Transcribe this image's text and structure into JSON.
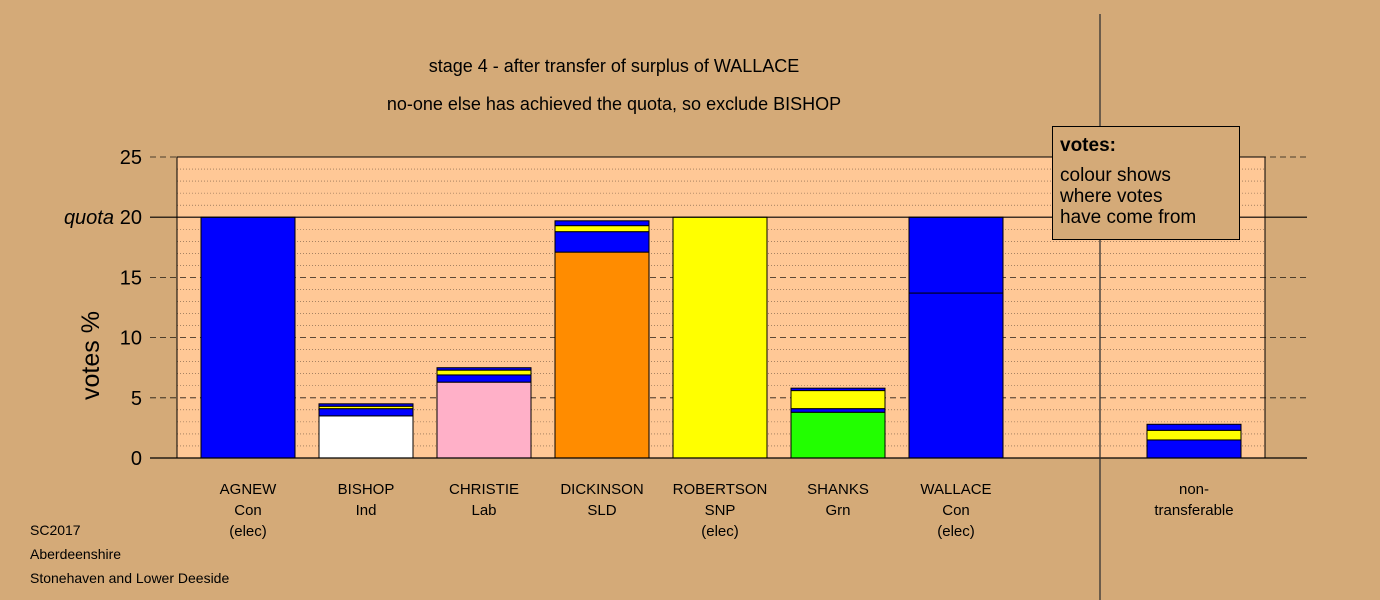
{
  "chart_data": {
    "type": "bar",
    "stacked": true,
    "title": "stage 4 - after transfer of surplus of WALLACE",
    "subtitle": "no-one else has achieved the quota, so exclude BISHOP",
    "ylabel": "votes %",
    "ylim": [
      0,
      25
    ],
    "yticks": [
      "0",
      "5",
      "10",
      "15",
      "20",
      "25"
    ],
    "quota": 20,
    "quota_label": "quota",
    "grid": true,
    "categories": [
      {
        "name": "AGNEW",
        "party": "Con",
        "status": "(elec)"
      },
      {
        "name": "BISHOP",
        "party": "Ind",
        "status": ""
      },
      {
        "name": "CHRISTIE",
        "party": "Lab",
        "status": ""
      },
      {
        "name": "DICKINSON",
        "party": "SLD",
        "status": ""
      },
      {
        "name": "ROBERTSON",
        "party": "SNP",
        "status": "(elec)"
      },
      {
        "name": "SHANKS",
        "party": "Grn",
        "status": ""
      },
      {
        "name": "WALLACE",
        "party": "Con",
        "status": "(elec)"
      },
      {
        "name": "non-",
        "party": "transferable",
        "status": ""
      }
    ],
    "bars": [
      {
        "segments": [
          {
            "value": 20.0,
            "color": "#0000ff"
          }
        ]
      },
      {
        "segments": [
          {
            "value": 3.5,
            "color": "#ffffff"
          },
          {
            "value": 0.6,
            "color": "#0000ff"
          },
          {
            "value": 0.2,
            "color": "#ffff00"
          },
          {
            "value": 0.2,
            "color": "#0000ff"
          }
        ]
      },
      {
        "segments": [
          {
            "value": 6.3,
            "color": "#ffb0c8"
          },
          {
            "value": 0.6,
            "color": "#0000ff"
          },
          {
            "value": 0.4,
            "color": "#ffff00"
          },
          {
            "value": 0.2,
            "color": "#0000ff"
          }
        ]
      },
      {
        "segments": [
          {
            "value": 17.1,
            "color": "#ff8c00"
          },
          {
            "value": 1.7,
            "color": "#0000ff"
          },
          {
            "value": 0.5,
            "color": "#ffff00"
          },
          {
            "value": 0.4,
            "color": "#0000ff"
          }
        ]
      },
      {
        "segments": [
          {
            "value": 20.0,
            "color": "#ffff00"
          }
        ]
      },
      {
        "segments": [
          {
            "value": 3.8,
            "color": "#22ff00"
          },
          {
            "value": 0.3,
            "color": "#0000ff"
          },
          {
            "value": 1.5,
            "color": "#ffff00"
          },
          {
            "value": 0.2,
            "color": "#0000ff"
          }
        ]
      },
      {
        "segments": [
          {
            "value": 13.7,
            "color": "#0000ff"
          },
          {
            "value": 6.3,
            "color": "#0000ff"
          }
        ]
      },
      {
        "segments": [
          {
            "value": 1.5,
            "color": "#0000ff"
          },
          {
            "value": 0.8,
            "color": "#ffff00"
          },
          {
            "value": 0.5,
            "color": "#0000ff"
          }
        ]
      }
    ]
  },
  "legend": {
    "title": "votes:",
    "lines": [
      "colour shows",
      "where votes",
      "have come from"
    ]
  },
  "footer": {
    "line1": "SC2017",
    "line2": "Aberdeenshire",
    "line3": "Stonehaven and Lower Deeside"
  },
  "colors": {
    "background": "#d4aa78",
    "plot_area": "#ffc896"
  }
}
